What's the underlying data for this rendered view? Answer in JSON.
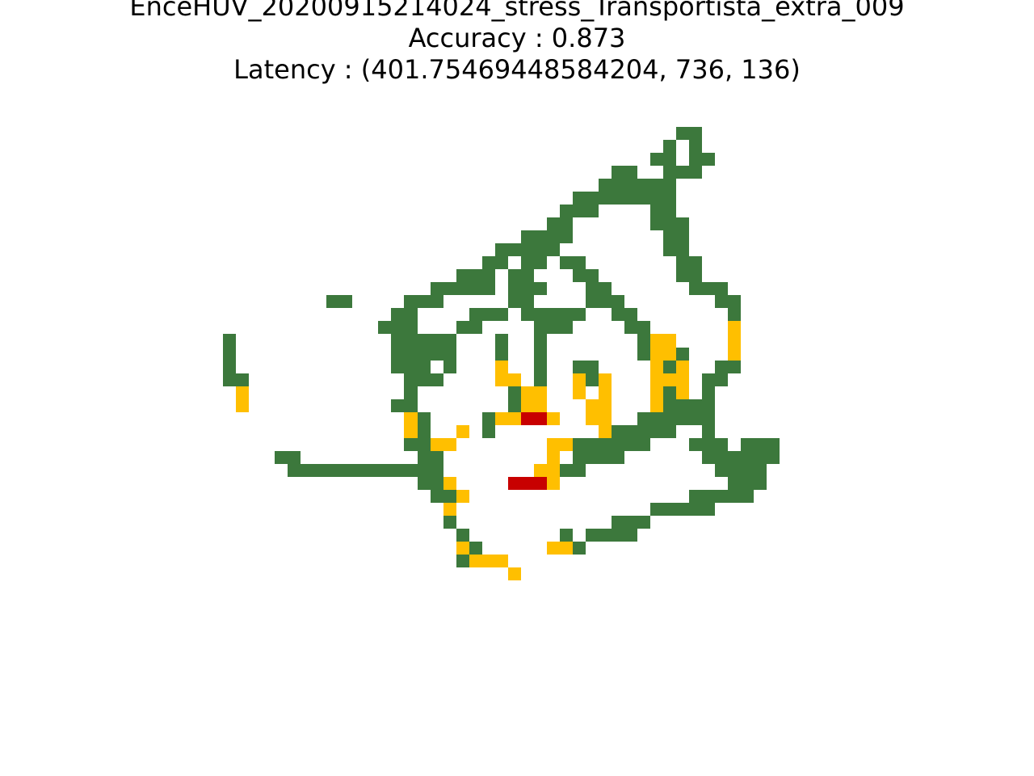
{
  "chart_data": {
    "type": "heatmap",
    "title_lines": [
      "EnceHUV_20200915214024_stress_Transportista_extra_009",
      "Accuracy : 0.873",
      "Latency : (401.75469448584204, 736, 136)"
    ],
    "grid": {
      "rows": 38,
      "cols": 47
    },
    "legend": "none",
    "axes": "off",
    "colors": {
      "green": "#3c783c",
      "yellow": "#ffbf00",
      "red": "#c80000"
    },
    "cells": [
      [
        0,
        37,
        "g"
      ],
      [
        0,
        38,
        "g"
      ],
      [
        1,
        36,
        "g"
      ],
      [
        1,
        38,
        "g"
      ],
      [
        2,
        35,
        "g"
      ],
      [
        2,
        36,
        "g"
      ],
      [
        2,
        38,
        "g"
      ],
      [
        2,
        39,
        "g"
      ],
      [
        3,
        32,
        "g"
      ],
      [
        3,
        33,
        "g"
      ],
      [
        3,
        36,
        "g"
      ],
      [
        3,
        37,
        "g"
      ],
      [
        3,
        38,
        "g"
      ],
      [
        4,
        31,
        "g"
      ],
      [
        4,
        32,
        "g"
      ],
      [
        4,
        33,
        "g"
      ],
      [
        4,
        34,
        "g"
      ],
      [
        4,
        35,
        "g"
      ],
      [
        4,
        36,
        "g"
      ],
      [
        5,
        29,
        "g"
      ],
      [
        5,
        30,
        "g"
      ],
      [
        5,
        31,
        "g"
      ],
      [
        5,
        32,
        "g"
      ],
      [
        5,
        33,
        "g"
      ],
      [
        5,
        34,
        "g"
      ],
      [
        5,
        35,
        "g"
      ],
      [
        5,
        36,
        "g"
      ],
      [
        6,
        28,
        "g"
      ],
      [
        6,
        29,
        "g"
      ],
      [
        6,
        30,
        "g"
      ],
      [
        6,
        35,
        "g"
      ],
      [
        6,
        36,
        "g"
      ],
      [
        7,
        27,
        "g"
      ],
      [
        7,
        28,
        "g"
      ],
      [
        7,
        35,
        "g"
      ],
      [
        7,
        36,
        "g"
      ],
      [
        7,
        37,
        "g"
      ],
      [
        8,
        25,
        "g"
      ],
      [
        8,
        26,
        "g"
      ],
      [
        8,
        27,
        "g"
      ],
      [
        8,
        28,
        "g"
      ],
      [
        8,
        36,
        "g"
      ],
      [
        8,
        37,
        "g"
      ],
      [
        9,
        23,
        "g"
      ],
      [
        9,
        24,
        "g"
      ],
      [
        9,
        25,
        "g"
      ],
      [
        9,
        26,
        "g"
      ],
      [
        9,
        27,
        "g"
      ],
      [
        9,
        36,
        "g"
      ],
      [
        9,
        37,
        "g"
      ],
      [
        10,
        22,
        "g"
      ],
      [
        10,
        23,
        "g"
      ],
      [
        10,
        25,
        "g"
      ],
      [
        10,
        26,
        "g"
      ],
      [
        10,
        28,
        "g"
      ],
      [
        10,
        29,
        "g"
      ],
      [
        10,
        37,
        "g"
      ],
      [
        10,
        38,
        "g"
      ],
      [
        11,
        20,
        "g"
      ],
      [
        11,
        21,
        "g"
      ],
      [
        11,
        22,
        "g"
      ],
      [
        11,
        24,
        "g"
      ],
      [
        11,
        25,
        "g"
      ],
      [
        11,
        29,
        "g"
      ],
      [
        11,
        30,
        "g"
      ],
      [
        11,
        37,
        "g"
      ],
      [
        11,
        38,
        "g"
      ],
      [
        12,
        18,
        "g"
      ],
      [
        12,
        19,
        "g"
      ],
      [
        12,
        20,
        "g"
      ],
      [
        12,
        21,
        "g"
      ],
      [
        12,
        22,
        "g"
      ],
      [
        12,
        24,
        "g"
      ],
      [
        12,
        25,
        "g"
      ],
      [
        12,
        26,
        "g"
      ],
      [
        12,
        30,
        "g"
      ],
      [
        12,
        31,
        "g"
      ],
      [
        12,
        38,
        "g"
      ],
      [
        12,
        39,
        "g"
      ],
      [
        12,
        40,
        "g"
      ],
      [
        13,
        10,
        "g"
      ],
      [
        13,
        11,
        "g"
      ],
      [
        13,
        16,
        "g"
      ],
      [
        13,
        17,
        "g"
      ],
      [
        13,
        18,
        "g"
      ],
      [
        13,
        24,
        "g"
      ],
      [
        13,
        25,
        "g"
      ],
      [
        13,
        30,
        "g"
      ],
      [
        13,
        31,
        "g"
      ],
      [
        13,
        32,
        "g"
      ],
      [
        13,
        40,
        "g"
      ],
      [
        13,
        41,
        "g"
      ],
      [
        14,
        15,
        "g"
      ],
      [
        14,
        16,
        "g"
      ],
      [
        14,
        21,
        "g"
      ],
      [
        14,
        22,
        "g"
      ],
      [
        14,
        23,
        "g"
      ],
      [
        14,
        25,
        "g"
      ],
      [
        14,
        26,
        "g"
      ],
      [
        14,
        27,
        "g"
      ],
      [
        14,
        28,
        "g"
      ],
      [
        14,
        29,
        "g"
      ],
      [
        14,
        32,
        "g"
      ],
      [
        14,
        33,
        "g"
      ],
      [
        14,
        41,
        "g"
      ],
      [
        15,
        14,
        "g"
      ],
      [
        15,
        15,
        "g"
      ],
      [
        15,
        16,
        "g"
      ],
      [
        15,
        20,
        "g"
      ],
      [
        15,
        21,
        "g"
      ],
      [
        15,
        26,
        "g"
      ],
      [
        15,
        27,
        "g"
      ],
      [
        15,
        28,
        "g"
      ],
      [
        15,
        33,
        "g"
      ],
      [
        15,
        34,
        "g"
      ],
      [
        15,
        41,
        "y"
      ],
      [
        16,
        2,
        "g"
      ],
      [
        16,
        15,
        "g"
      ],
      [
        16,
        16,
        "g"
      ],
      [
        16,
        17,
        "g"
      ],
      [
        16,
        18,
        "g"
      ],
      [
        16,
        19,
        "g"
      ],
      [
        16,
        23,
        "g"
      ],
      [
        16,
        26,
        "g"
      ],
      [
        16,
        34,
        "g"
      ],
      [
        16,
        35,
        "y"
      ],
      [
        16,
        36,
        "y"
      ],
      [
        16,
        41,
        "y"
      ],
      [
        17,
        2,
        "g"
      ],
      [
        17,
        15,
        "g"
      ],
      [
        17,
        16,
        "g"
      ],
      [
        17,
        17,
        "g"
      ],
      [
        17,
        18,
        "g"
      ],
      [
        17,
        19,
        "g"
      ],
      [
        17,
        23,
        "g"
      ],
      [
        17,
        26,
        "g"
      ],
      [
        17,
        34,
        "g"
      ],
      [
        17,
        35,
        "y"
      ],
      [
        17,
        36,
        "y"
      ],
      [
        17,
        37,
        "g"
      ],
      [
        17,
        41,
        "y"
      ],
      [
        18,
        2,
        "g"
      ],
      [
        18,
        15,
        "g"
      ],
      [
        18,
        16,
        "g"
      ],
      [
        18,
        17,
        "g"
      ],
      [
        18,
        19,
        "g"
      ],
      [
        18,
        23,
        "y"
      ],
      [
        18,
        26,
        "g"
      ],
      [
        18,
        29,
        "g"
      ],
      [
        18,
        30,
        "g"
      ],
      [
        18,
        35,
        "y"
      ],
      [
        18,
        36,
        "g"
      ],
      [
        18,
        37,
        "y"
      ],
      [
        18,
        40,
        "g"
      ],
      [
        18,
        41,
        "g"
      ],
      [
        19,
        2,
        "g"
      ],
      [
        19,
        3,
        "g"
      ],
      [
        19,
        16,
        "g"
      ],
      [
        19,
        17,
        "g"
      ],
      [
        19,
        18,
        "g"
      ],
      [
        19,
        23,
        "y"
      ],
      [
        19,
        24,
        "y"
      ],
      [
        19,
        26,
        "g"
      ],
      [
        19,
        29,
        "y"
      ],
      [
        19,
        30,
        "g"
      ],
      [
        19,
        31,
        "y"
      ],
      [
        19,
        35,
        "y"
      ],
      [
        19,
        36,
        "y"
      ],
      [
        19,
        37,
        "y"
      ],
      [
        19,
        39,
        "g"
      ],
      [
        19,
        40,
        "g"
      ],
      [
        20,
        3,
        "y"
      ],
      [
        20,
        16,
        "g"
      ],
      [
        20,
        24,
        "g"
      ],
      [
        20,
        25,
        "y"
      ],
      [
        20,
        26,
        "y"
      ],
      [
        20,
        29,
        "y"
      ],
      [
        20,
        31,
        "y"
      ],
      [
        20,
        35,
        "y"
      ],
      [
        20,
        36,
        "g"
      ],
      [
        20,
        37,
        "y"
      ],
      [
        20,
        39,
        "g"
      ],
      [
        21,
        3,
        "y"
      ],
      [
        21,
        15,
        "g"
      ],
      [
        21,
        16,
        "g"
      ],
      [
        21,
        24,
        "g"
      ],
      [
        21,
        25,
        "y"
      ],
      [
        21,
        26,
        "y"
      ],
      [
        21,
        30,
        "y"
      ],
      [
        21,
        31,
        "y"
      ],
      [
        21,
        35,
        "y"
      ],
      [
        21,
        36,
        "g"
      ],
      [
        21,
        37,
        "g"
      ],
      [
        21,
        38,
        "g"
      ],
      [
        21,
        39,
        "g"
      ],
      [
        22,
        16,
        "y"
      ],
      [
        22,
        17,
        "g"
      ],
      [
        22,
        22,
        "g"
      ],
      [
        22,
        23,
        "y"
      ],
      [
        22,
        24,
        "y"
      ],
      [
        22,
        25,
        "r"
      ],
      [
        22,
        26,
        "r"
      ],
      [
        22,
        27,
        "y"
      ],
      [
        22,
        30,
        "y"
      ],
      [
        22,
        31,
        "y"
      ],
      [
        22,
        34,
        "g"
      ],
      [
        22,
        35,
        "g"
      ],
      [
        22,
        36,
        "g"
      ],
      [
        22,
        37,
        "g"
      ],
      [
        22,
        38,
        "g"
      ],
      [
        22,
        39,
        "g"
      ],
      [
        23,
        16,
        "y"
      ],
      [
        23,
        17,
        "g"
      ],
      [
        23,
        20,
        "y"
      ],
      [
        23,
        22,
        "g"
      ],
      [
        23,
        31,
        "y"
      ],
      [
        23,
        32,
        "g"
      ],
      [
        23,
        33,
        "g"
      ],
      [
        23,
        34,
        "g"
      ],
      [
        23,
        35,
        "g"
      ],
      [
        23,
        36,
        "g"
      ],
      [
        23,
        39,
        "g"
      ],
      [
        24,
        16,
        "g"
      ],
      [
        24,
        17,
        "g"
      ],
      [
        24,
        18,
        "y"
      ],
      [
        24,
        19,
        "y"
      ],
      [
        24,
        27,
        "y"
      ],
      [
        24,
        28,
        "y"
      ],
      [
        24,
        29,
        "g"
      ],
      [
        24,
        30,
        "g"
      ],
      [
        24,
        31,
        "g"
      ],
      [
        24,
        32,
        "g"
      ],
      [
        24,
        33,
        "g"
      ],
      [
        24,
        34,
        "g"
      ],
      [
        24,
        38,
        "g"
      ],
      [
        24,
        39,
        "g"
      ],
      [
        24,
        40,
        "g"
      ],
      [
        24,
        42,
        "g"
      ],
      [
        24,
        43,
        "g"
      ],
      [
        24,
        44,
        "g"
      ],
      [
        25,
        6,
        "g"
      ],
      [
        25,
        7,
        "g"
      ],
      [
        25,
        17,
        "g"
      ],
      [
        25,
        18,
        "g"
      ],
      [
        25,
        27,
        "y"
      ],
      [
        25,
        29,
        "g"
      ],
      [
        25,
        30,
        "g"
      ],
      [
        25,
        31,
        "g"
      ],
      [
        25,
        32,
        "g"
      ],
      [
        25,
        39,
        "g"
      ],
      [
        25,
        40,
        "g"
      ],
      [
        25,
        41,
        "g"
      ],
      [
        25,
        42,
        "g"
      ],
      [
        25,
        43,
        "g"
      ],
      [
        25,
        44,
        "g"
      ],
      [
        26,
        7,
        "g"
      ],
      [
        26,
        8,
        "g"
      ],
      [
        26,
        9,
        "g"
      ],
      [
        26,
        10,
        "g"
      ],
      [
        26,
        11,
        "g"
      ],
      [
        26,
        12,
        "g"
      ],
      [
        26,
        13,
        "g"
      ],
      [
        26,
        14,
        "g"
      ],
      [
        26,
        15,
        "g"
      ],
      [
        26,
        16,
        "g"
      ],
      [
        26,
        17,
        "g"
      ],
      [
        26,
        18,
        "g"
      ],
      [
        26,
        26,
        "y"
      ],
      [
        26,
        27,
        "y"
      ],
      [
        26,
        28,
        "g"
      ],
      [
        26,
        29,
        "g"
      ],
      [
        26,
        40,
        "g"
      ],
      [
        26,
        41,
        "g"
      ],
      [
        26,
        42,
        "g"
      ],
      [
        26,
        43,
        "g"
      ],
      [
        27,
        17,
        "g"
      ],
      [
        27,
        18,
        "g"
      ],
      [
        27,
        19,
        "y"
      ],
      [
        27,
        24,
        "r"
      ],
      [
        27,
        25,
        "r"
      ],
      [
        27,
        26,
        "r"
      ],
      [
        27,
        27,
        "y"
      ],
      [
        27,
        41,
        "g"
      ],
      [
        27,
        42,
        "g"
      ],
      [
        27,
        43,
        "g"
      ],
      [
        28,
        18,
        "g"
      ],
      [
        28,
        19,
        "g"
      ],
      [
        28,
        20,
        "y"
      ],
      [
        28,
        38,
        "g"
      ],
      [
        28,
        39,
        "g"
      ],
      [
        28,
        40,
        "g"
      ],
      [
        28,
        41,
        "g"
      ],
      [
        28,
        42,
        "g"
      ],
      [
        29,
        19,
        "y"
      ],
      [
        29,
        35,
        "g"
      ],
      [
        29,
        36,
        "g"
      ],
      [
        29,
        37,
        "g"
      ],
      [
        29,
        38,
        "g"
      ],
      [
        29,
        39,
        "g"
      ],
      [
        30,
        19,
        "g"
      ],
      [
        30,
        32,
        "g"
      ],
      [
        30,
        33,
        "g"
      ],
      [
        30,
        34,
        "g"
      ],
      [
        31,
        20,
        "g"
      ],
      [
        31,
        28,
        "g"
      ],
      [
        31,
        30,
        "g"
      ],
      [
        31,
        31,
        "g"
      ],
      [
        31,
        32,
        "g"
      ],
      [
        31,
        33,
        "g"
      ],
      [
        32,
        20,
        "y"
      ],
      [
        32,
        21,
        "g"
      ],
      [
        32,
        27,
        "y"
      ],
      [
        32,
        28,
        "y"
      ],
      [
        32,
        29,
        "g"
      ],
      [
        33,
        20,
        "g"
      ],
      [
        33,
        21,
        "y"
      ],
      [
        33,
        22,
        "y"
      ],
      [
        33,
        23,
        "y"
      ],
      [
        34,
        24,
        "y"
      ]
    ]
  }
}
